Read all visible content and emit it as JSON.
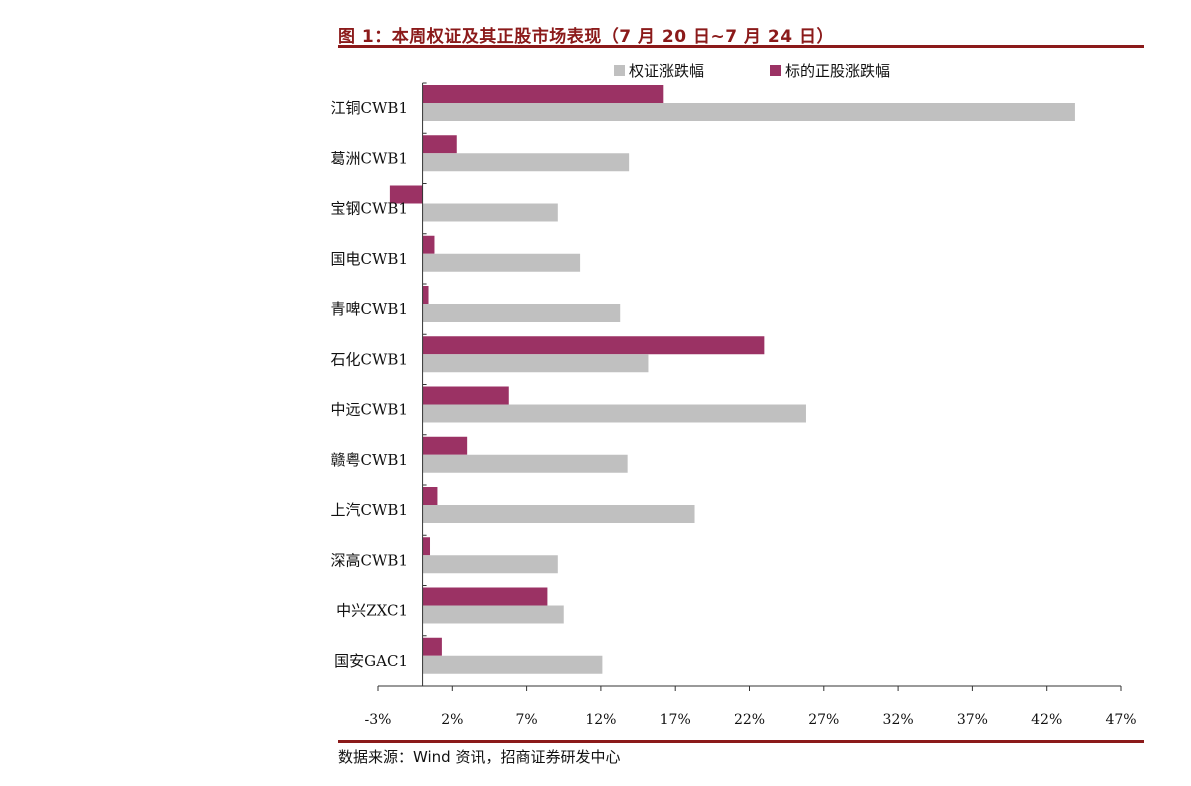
{
  "header": {
    "title": "图 1：本周权证及其正股市场表现（7 月 20 日~7 月 24 日）"
  },
  "footer": {
    "source": "数据来源：Wind 资讯，招商证券研发中心"
  },
  "chart_data": {
    "type": "bar",
    "orientation": "horizontal",
    "title": "图 1：本周权证及其正股市场表现（7 月 20 日~7 月 24 日）",
    "categories": [
      "江铜CWB1",
      "葛洲CWB1",
      "宝钢CWB1",
      "国电CWB1",
      "青啤CWB1",
      "石化CWB1",
      "中远CWB1",
      "赣粤CWB1",
      "上汽CWB1",
      "深高CWB1",
      "中兴ZXC1",
      "国安GAC1"
    ],
    "series": [
      {
        "name": "权证涨跌幅",
        "color": "#c0c0c0",
        "values": [
          43.9,
          13.9,
          9.1,
          10.6,
          13.3,
          15.2,
          25.8,
          13.8,
          18.3,
          9.1,
          9.5,
          12.1
        ]
      },
      {
        "name": "标的正股涨跌幅",
        "color": "#9b3264",
        "values": [
          16.2,
          2.3,
          -2.2,
          0.8,
          0.4,
          23.0,
          5.8,
          3.0,
          1.0,
          0.5,
          8.4,
          1.3
        ]
      }
    ],
    "xlim": [
      -3,
      47
    ],
    "xticks": [
      -3,
      2,
      7,
      12,
      17,
      22,
      27,
      32,
      37,
      42,
      47
    ],
    "xtick_labels": [
      "-3%",
      "2%",
      "7%",
      "12%",
      "17%",
      "22%",
      "27%",
      "32%",
      "37%",
      "42%",
      "47%"
    ],
    "legend_position": "top",
    "grid": false
  }
}
